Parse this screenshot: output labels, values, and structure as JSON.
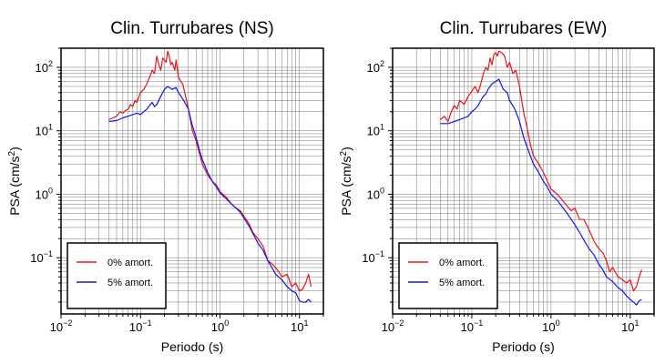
{
  "chart_data": [
    {
      "type": "line",
      "title": "Clin. Turrubares (NS)",
      "xlabel": "Periodo (s)",
      "ylabel": "PSA (cm/s²)",
      "xscale": "log",
      "yscale": "log",
      "xlim": [
        0.01,
        20
      ],
      "ylim": [
        0.013,
        200
      ],
      "xticks": [
        {
          "base": "10",
          "exp": "−2",
          "value": 0.01
        },
        {
          "base": "10",
          "exp": "−1",
          "value": 0.1
        },
        {
          "base": "10",
          "exp": "0",
          "value": 1
        },
        {
          "base": "10",
          "exp": "1",
          "value": 10
        }
      ],
      "yticks": [
        {
          "base": "10",
          "exp": "−1",
          "value": 0.1
        },
        {
          "base": "10",
          "exp": "0",
          "value": 1
        },
        {
          "base": "10",
          "exp": "1",
          "value": 10
        },
        {
          "base": "10",
          "exp": "2",
          "value": 100
        }
      ],
      "grid": true,
      "legend_position": "bottom-left",
      "series": [
        {
          "name": "0% amort.",
          "color": "#e8141c",
          "x": [
            0.04,
            0.045,
            0.05,
            0.055,
            0.06,
            0.065,
            0.07,
            0.075,
            0.08,
            0.085,
            0.09,
            0.1,
            0.11,
            0.12,
            0.13,
            0.14,
            0.15,
            0.16,
            0.17,
            0.18,
            0.19,
            0.2,
            0.21,
            0.22,
            0.23,
            0.24,
            0.25,
            0.27,
            0.28,
            0.3,
            0.32,
            0.34,
            0.36,
            0.38,
            0.4,
            0.45,
            0.5,
            0.55,
            0.6,
            0.7,
            0.8,
            0.9,
            1.0,
            1.2,
            1.4,
            1.6,
            1.8,
            2.0,
            2.3,
            2.6,
            3.0,
            3.5,
            4.0,
            4.5,
            5.0,
            5.5,
            6.0,
            7.0,
            8.0,
            9.0,
            10,
            11,
            12,
            13,
            14
          ],
          "y": [
            15,
            16,
            17,
            20,
            19,
            21,
            22,
            26,
            24,
            30,
            28,
            40,
            45,
            55,
            70,
            90,
            80,
            150,
            110,
            90,
            140,
            130,
            120,
            180,
            150,
            110,
            120,
            90,
            130,
            70,
            60,
            55,
            40,
            30,
            22,
            10,
            7,
            4.5,
            3,
            2,
            1.6,
            1.4,
            1.1,
            0.9,
            0.7,
            0.6,
            0.55,
            0.45,
            0.35,
            0.25,
            0.2,
            0.15,
            0.09,
            0.08,
            0.07,
            0.06,
            0.05,
            0.055,
            0.035,
            0.04,
            0.03,
            0.032,
            0.04,
            0.055,
            0.035
          ]
        },
        {
          "name": "5% amort.",
          "color": "#1416e8",
          "x": [
            0.04,
            0.05,
            0.06,
            0.07,
            0.08,
            0.09,
            0.1,
            0.11,
            0.12,
            0.13,
            0.14,
            0.15,
            0.16,
            0.18,
            0.2,
            0.22,
            0.25,
            0.28,
            0.3,
            0.35,
            0.4,
            0.45,
            0.5,
            0.55,
            0.6,
            0.7,
            0.8,
            0.9,
            1.0,
            1.2,
            1.4,
            1.6,
            1.8,
            2.0,
            2.3,
            2.6,
            3.0,
            3.5,
            4.0,
            4.5,
            5.0,
            6.0,
            7.0,
            8.0,
            9.0,
            10,
            11,
            12,
            13,
            14
          ],
          "y": [
            14,
            14.5,
            16,
            17,
            18,
            19,
            18,
            20,
            22,
            25,
            28,
            24,
            26,
            35,
            45,
            50,
            45,
            48,
            40,
            30,
            22,
            12,
            8,
            5,
            3.5,
            2.2,
            1.6,
            1.3,
            1.05,
            0.85,
            0.7,
            0.6,
            0.52,
            0.42,
            0.32,
            0.24,
            0.17,
            0.13,
            0.09,
            0.07,
            0.055,
            0.045,
            0.035,
            0.03,
            0.028,
            0.021,
            0.02,
            0.02,
            0.022,
            0.02
          ]
        }
      ]
    },
    {
      "type": "line",
      "title": "Clin. Turrubares (EW)",
      "xlabel": "Periodo (s)",
      "ylabel": "PSA (cm/s²)",
      "xscale": "log",
      "yscale": "log",
      "xlim": [
        0.01,
        20
      ],
      "ylim": [
        0.013,
        200
      ],
      "xticks": [
        {
          "base": "10",
          "exp": "−2",
          "value": 0.01
        },
        {
          "base": "10",
          "exp": "−1",
          "value": 0.1
        },
        {
          "base": "10",
          "exp": "0",
          "value": 1
        },
        {
          "base": "10",
          "exp": "1",
          "value": 10
        }
      ],
      "yticks": [
        {
          "base": "10",
          "exp": "−1",
          "value": 0.1
        },
        {
          "base": "10",
          "exp": "0",
          "value": 1
        },
        {
          "base": "10",
          "exp": "1",
          "value": 10
        },
        {
          "base": "10",
          "exp": "2",
          "value": 100
        }
      ],
      "grid": true,
      "legend_position": "bottom-left",
      "series": [
        {
          "name": "0% amort.",
          "color": "#e8141c",
          "x": [
            0.04,
            0.045,
            0.05,
            0.055,
            0.06,
            0.065,
            0.07,
            0.075,
            0.08,
            0.09,
            0.1,
            0.11,
            0.12,
            0.13,
            0.14,
            0.15,
            0.16,
            0.17,
            0.18,
            0.19,
            0.2,
            0.21,
            0.22,
            0.24,
            0.26,
            0.28,
            0.3,
            0.33,
            0.36,
            0.4,
            0.45,
            0.5,
            0.55,
            0.6,
            0.7,
            0.8,
            0.9,
            1.0,
            1.2,
            1.4,
            1.6,
            1.8,
            2.0,
            2.3,
            2.6,
            3.0,
            3.5,
            4.0,
            4.5,
            5.0,
            5.5,
            6.0,
            7.0,
            8.0,
            9.0,
            10,
            11,
            12,
            13,
            14
          ],
          "y": [
            15,
            17,
            14,
            20,
            25,
            22,
            30,
            28,
            26,
            35,
            42,
            50,
            40,
            55,
            80,
            100,
            90,
            140,
            110,
            160,
            170,
            150,
            180,
            170,
            150,
            100,
            120,
            80,
            90,
            50,
            20,
            11,
            6,
            4,
            3,
            2.2,
            1.6,
            1.2,
            1.0,
            0.8,
            0.65,
            0.55,
            0.6,
            0.4,
            0.4,
            0.28,
            0.18,
            0.14,
            0.12,
            0.09,
            0.06,
            0.07,
            0.05,
            0.045,
            0.04,
            0.045,
            0.03,
            0.035,
            0.05,
            0.065
          ]
        },
        {
          "name": "5% amort.",
          "color": "#1416e8",
          "x": [
            0.04,
            0.05,
            0.06,
            0.07,
            0.08,
            0.09,
            0.1,
            0.11,
            0.12,
            0.13,
            0.14,
            0.15,
            0.16,
            0.18,
            0.2,
            0.22,
            0.25,
            0.28,
            0.3,
            0.35,
            0.4,
            0.45,
            0.5,
            0.55,
            0.6,
            0.7,
            0.8,
            0.9,
            1.0,
            1.2,
            1.4,
            1.6,
            1.8,
            2.0,
            2.3,
            2.6,
            3.0,
            3.5,
            4.0,
            4.5,
            5.0,
            6.0,
            7.0,
            8.0,
            9.0,
            10,
            11,
            12,
            13,
            14
          ],
          "y": [
            13,
            13,
            14,
            15,
            16,
            17,
            20,
            22,
            25,
            30,
            35,
            38,
            45,
            55,
            60,
            65,
            45,
            40,
            30,
            22,
            14,
            8,
            5.5,
            4,
            3,
            2.2,
            1.6,
            1.3,
            1.0,
            0.8,
            0.62,
            0.5,
            0.4,
            0.33,
            0.25,
            0.19,
            0.14,
            0.11,
            0.08,
            0.065,
            0.05,
            0.042,
            0.034,
            0.03,
            0.025,
            0.022,
            0.02,
            0.018,
            0.021,
            0.022
          ]
        }
      ]
    }
  ]
}
